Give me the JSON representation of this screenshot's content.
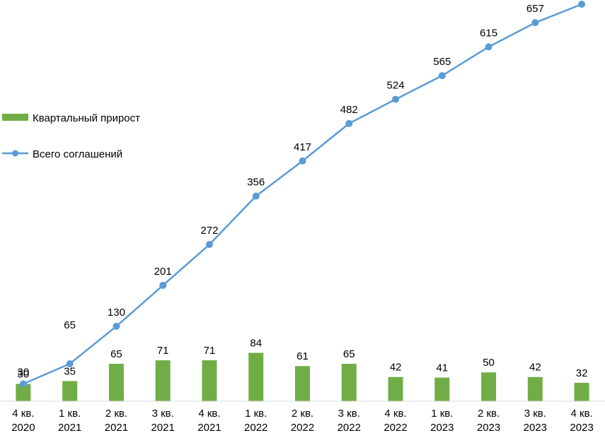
{
  "chart_data": {
    "type": "bar",
    "categories": [
      [
        "4 кв.",
        "2020"
      ],
      [
        "1 кв.",
        "2021"
      ],
      [
        "2 кв.",
        "2021"
      ],
      [
        "3 кв.",
        "2021"
      ],
      [
        "4 кв.",
        "2021"
      ],
      [
        "1 кв.",
        "2022"
      ],
      [
        "2 кв.",
        "2022"
      ],
      [
        "3 кв.",
        "2022"
      ],
      [
        "4 кв.",
        "2022"
      ],
      [
        "1 кв.",
        "2023"
      ],
      [
        "2 кв.",
        "2023"
      ],
      [
        "3 кв.",
        "2023"
      ],
      [
        "4 кв.",
        "2023"
      ]
    ],
    "series": [
      {
        "name": "Квартальный прирост",
        "type": "bar",
        "color": "#70ad47",
        "values": [
          30,
          35,
          65,
          71,
          71,
          84,
          61,
          65,
          42,
          41,
          50,
          42,
          32
        ]
      },
      {
        "name": "Всего соглашений",
        "type": "line",
        "color": "#5b9bd5",
        "values": [
          30,
          65,
          130,
          201,
          272,
          356,
          417,
          482,
          524,
          565,
          615,
          657,
          689
        ]
      }
    ],
    "line_labels": [
      "30",
      "65",
      "130",
      "201",
      "272",
      "356",
      "417",
      "482",
      "524",
      "565",
      "615",
      "657",
      ""
    ],
    "ylim": [
      0,
      700
    ],
    "grid": false,
    "legend_position": "left"
  }
}
